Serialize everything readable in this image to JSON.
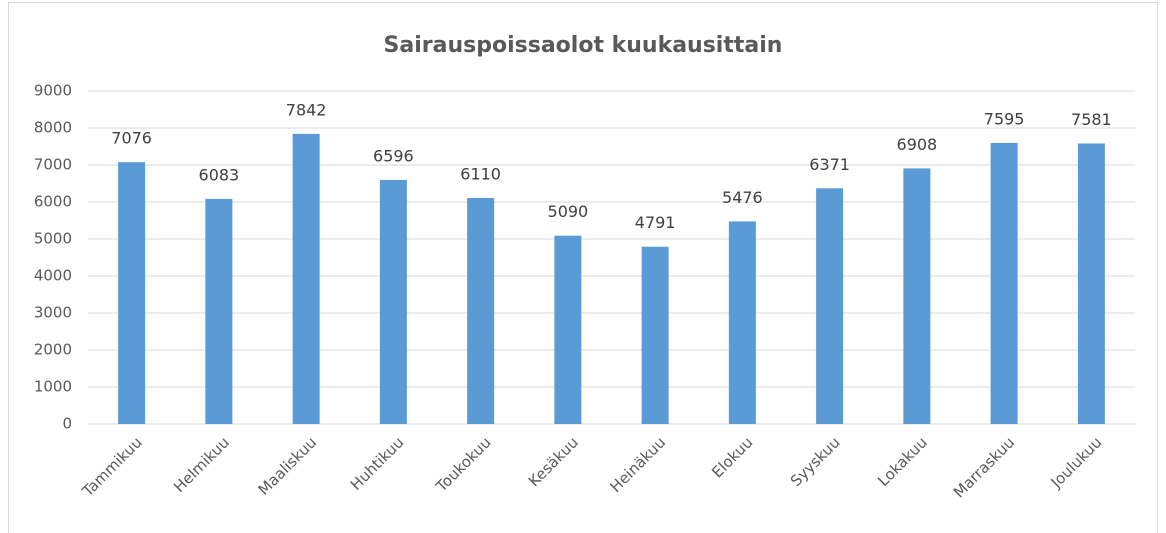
{
  "chart_data": {
    "type": "bar",
    "title": "Sairauspoissaolot kuukausittain",
    "categories": [
      "Tammikuu",
      "Helmikuu",
      "Maaliskuu",
      "Huhtikuu",
      "Toukokuu",
      "Kesäkuu",
      "Heinäkuu",
      "Elokuu",
      "Syyskuu",
      "Lokakuu",
      "Marraskuu",
      "Joulukuu"
    ],
    "values": [
      7076,
      6083,
      7842,
      6596,
      6110,
      5090,
      4791,
      5476,
      6371,
      6908,
      7595,
      7581
    ],
    "color": "#5b9bd5",
    "ylim": [
      0,
      9000
    ],
    "yticks": [
      0,
      1000,
      2000,
      3000,
      4000,
      5000,
      6000,
      7000,
      8000,
      9000
    ],
    "grid": true
  }
}
